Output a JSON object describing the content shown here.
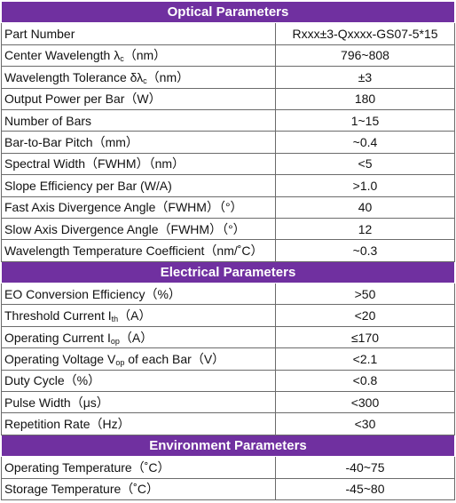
{
  "sections": [
    {
      "title": "Optical Parameters",
      "rows": [
        {
          "label": [
            "Part Number"
          ],
          "value": "Rxxx±3-Qxxxx-GS07-5*15"
        },
        {
          "label": [
            "Center Wavelength λ",
            "c",
            "（nm）"
          ],
          "value": "796~808"
        },
        {
          "label": [
            "Wavelength Tolerance δλ",
            "c",
            "（nm）"
          ],
          "value": "±3"
        },
        {
          "label": [
            "Output Power per Bar（W）"
          ],
          "value": "180"
        },
        {
          "label": [
            "Number of Bars"
          ],
          "value": "1~15"
        },
        {
          "label": [
            "Bar-to-Bar Pitch（mm）"
          ],
          "value": "~0.4"
        },
        {
          "label": [
            "Spectral Width（FWHM）（nm）"
          ],
          "value": "<5"
        },
        {
          "label": [
            "Slope Efficiency per Bar (W/A)"
          ],
          "value": ">1.0"
        },
        {
          "label": [
            "Fast Axis Divergence Angle（FWHM）（°）"
          ],
          "value": "40"
        },
        {
          "label": [
            "Slow Axis Divergence Angle（FWHM）（°）"
          ],
          "value": "12"
        },
        {
          "label": [
            "Wavelength Temperature Coefficient（nm/˚C）"
          ],
          "value": "~0.3"
        }
      ]
    },
    {
      "title": "Electrical Parameters",
      "rows": [
        {
          "label": [
            "EO Conversion Efficiency（%）"
          ],
          "value": ">50"
        },
        {
          "label": [
            "Threshold Current I",
            "th",
            "（A）"
          ],
          "value": "<20"
        },
        {
          "label": [
            "Operating Current I",
            "op",
            "（A）"
          ],
          "value": "≤170"
        },
        {
          "label": [
            "Operating Voltage V",
            "op",
            " of each Bar（V）"
          ],
          "value": "<2.1"
        },
        {
          "label": [
            "Duty Cycle（%）"
          ],
          "value": "<0.8"
        },
        {
          "label": [
            "Pulse Width（μs）"
          ],
          "value": "<300"
        },
        {
          "label": [
            "Repetition Rate（Hz）"
          ],
          "value": "<30"
        }
      ]
    },
    {
      "title": "Environment Parameters",
      "rows": [
        {
          "label": [
            "Operating Temperature（˚C）"
          ],
          "value": "-40~75"
        },
        {
          "label": [
            "Storage Temperature（˚C）"
          ],
          "value": "-45~80"
        }
      ]
    }
  ]
}
